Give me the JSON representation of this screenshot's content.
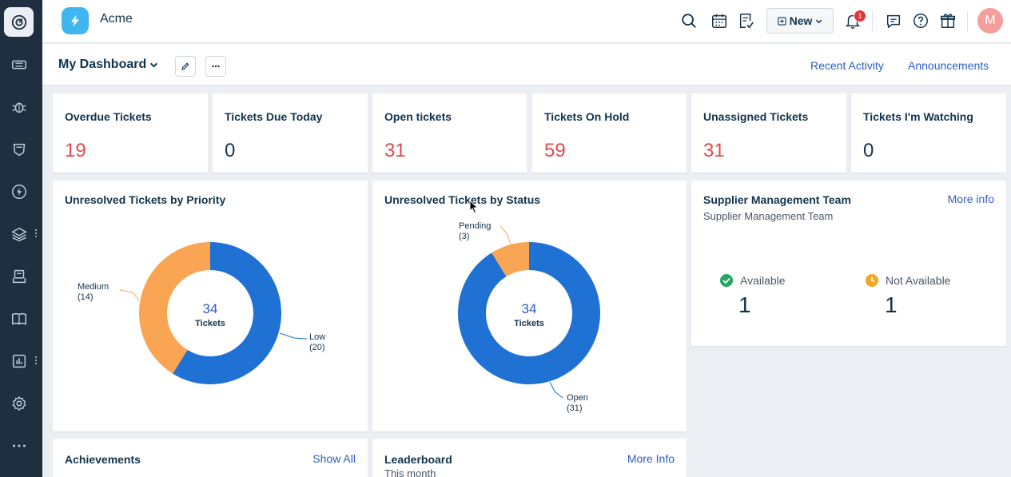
{
  "app": {
    "title": "Acme"
  },
  "sidebar": {
    "items": [
      {
        "icon": "dashboard-icon"
      },
      {
        "icon": "tickets-icon"
      },
      {
        "icon": "bug-icon"
      },
      {
        "icon": "shield-icon"
      },
      {
        "icon": "lightning-icon"
      },
      {
        "icon": "layers-icon"
      },
      {
        "icon": "inbox-icon"
      },
      {
        "icon": "book-icon"
      },
      {
        "icon": "reports-icon"
      },
      {
        "icon": "gear-icon"
      },
      {
        "icon": "more-icon"
      }
    ]
  },
  "topbar": {
    "new_label": "New",
    "notification_count": "1",
    "avatar_initial": "M"
  },
  "subheader": {
    "title": "My Dashboard",
    "links": [
      "Recent Activity",
      "Announcements"
    ]
  },
  "stats": [
    {
      "label": "Overdue Tickets",
      "value": "19",
      "color": "#e5484d"
    },
    {
      "label": "Tickets Due Today",
      "value": "0",
      "color": "#12344d"
    },
    {
      "label": "Open tickets",
      "value": "31",
      "color": "#e5484d"
    },
    {
      "label": "Tickets On Hold",
      "value": "59",
      "color": "#e5484d"
    },
    {
      "label": "Unassigned Tickets",
      "value": "31",
      "color": "#e5484d"
    },
    {
      "label": "Tickets I'm Watching",
      "value": "0",
      "color": "#12344d"
    }
  ],
  "priority_chart": {
    "title": "Unresolved Tickets by Priority",
    "center_value": "34",
    "center_label": "Tickets"
  },
  "status_chart": {
    "title": "Unresolved Tickets by Status",
    "center_value": "34",
    "center_label": "Tickets"
  },
  "chart_data": [
    {
      "type": "pie",
      "title": "Unresolved Tickets by Priority",
      "slices": [
        {
          "name": "Low",
          "value": 20,
          "label_value": "(20)",
          "color": "#2071d4"
        },
        {
          "name": "Medium",
          "value": 14,
          "label_value": "(14)",
          "color": "#f9a553"
        }
      ],
      "total": 34
    },
    {
      "type": "pie",
      "title": "Unresolved Tickets by Status",
      "slices": [
        {
          "name": "Open",
          "value": 31,
          "label_value": "(31)",
          "color": "#2071d4"
        },
        {
          "name": "Pending",
          "value": 3,
          "label_value": "(3)",
          "color": "#f9a553"
        }
      ],
      "total": 34
    }
  ],
  "supplier": {
    "title": "Supplier Management Team",
    "link": "More info",
    "subtitle": "Supplier Management Team",
    "available_label": "Available",
    "available_value": "1",
    "not_available_label": "Not Available",
    "not_available_value": "1"
  },
  "achievements": {
    "title": "Achievements",
    "link": "Show All"
  },
  "leaderboard": {
    "title": "Leaderboard",
    "link": "More Info",
    "subtitle": "This month"
  }
}
